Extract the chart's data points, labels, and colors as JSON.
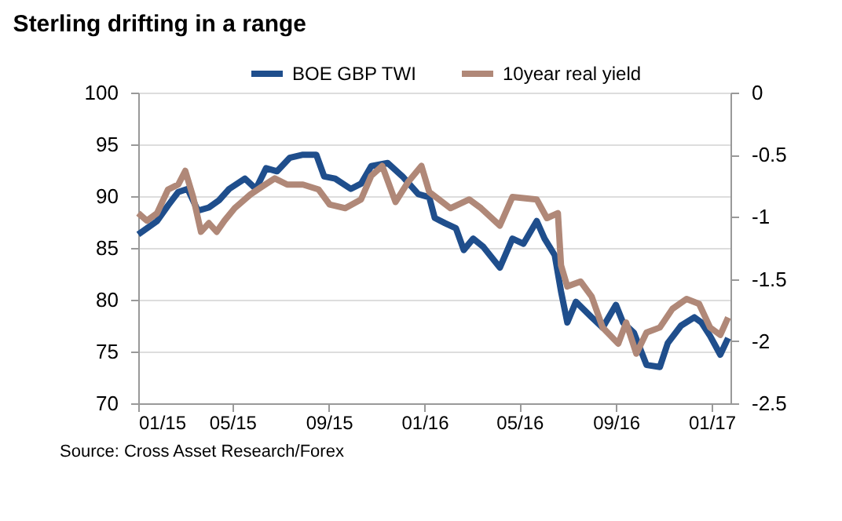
{
  "chart_data": {
    "type": "line",
    "title": "Sterling drifting in a range",
    "annotations": [
      "Source: Cross Asset Research/Forex"
    ],
    "legend": "top",
    "grid": "y",
    "marker": "none",
    "line_style": "solid",
    "xlim": [
      "2015-01-01",
      "2017-01-25"
    ],
    "xticks": [
      {
        "value": "2015-01-01",
        "label": "01/15"
      },
      {
        "value": "2015-05-01",
        "label": "05/15"
      },
      {
        "value": "2015-09-01",
        "label": "09/15"
      },
      {
        "value": "2016-01-01",
        "label": "01/16"
      },
      {
        "value": "2016-05-01",
        "label": "05/16"
      },
      {
        "value": "2016-09-01",
        "label": "09/16"
      },
      {
        "value": "2017-01-01",
        "label": "01/17"
      }
    ],
    "ylim": [
      70,
      100
    ],
    "yticks": [
      70,
      75,
      80,
      85,
      90,
      95,
      100
    ],
    "y2lim": [
      -2.5,
      0
    ],
    "y2ticks": [
      -2.5,
      -2,
      -1.5,
      -1,
      -0.5,
      0
    ],
    "series": [
      {
        "name": "BOE GBP TWI",
        "color": "#1f4e8c",
        "x": [
          "2015-01-01",
          "2015-01-12",
          "2015-01-25",
          "2015-02-08",
          "2015-02-21",
          "2015-03-05",
          "2015-03-18",
          "2015-04-01",
          "2015-04-14",
          "2015-04-27",
          "2015-05-17",
          "2015-05-31",
          "2015-06-13",
          "2015-06-27",
          "2015-07-13",
          "2015-07-30",
          "2015-08-16",
          "2015-08-26",
          "2015-09-09",
          "2015-09-29",
          "2015-10-12",
          "2015-10-25",
          "2015-11-15",
          "2015-12-04",
          "2015-12-24",
          "2016-01-07",
          "2016-01-14",
          "2016-01-27",
          "2016-02-10",
          "2016-02-20",
          "2016-03-03",
          "2016-03-16",
          "2016-04-06",
          "2016-04-22",
          "2016-05-06",
          "2016-05-23",
          "2016-06-02",
          "2016-06-15",
          "2016-06-23",
          "2016-07-01",
          "2016-07-12",
          "2016-08-01",
          "2016-08-15",
          "2016-09-01",
          "2016-09-10",
          "2016-09-24",
          "2016-10-10",
          "2016-10-27",
          "2016-11-06",
          "2016-11-23",
          "2016-12-10",
          "2016-12-19",
          "2016-12-30",
          "2017-01-12",
          "2017-01-22"
        ],
        "values": [
          86.3,
          86.9,
          87.6,
          89.1,
          90.4,
          90.7,
          88.6,
          88.9,
          89.6,
          90.7,
          91.7,
          90.7,
          92.7,
          92.4,
          93.7,
          94.0,
          94.0,
          91.9,
          91.7,
          90.7,
          91.2,
          92.9,
          93.2,
          91.9,
          90.2,
          89.9,
          87.9,
          87.4,
          86.9,
          84.8,
          85.9,
          85.1,
          83.1,
          85.9,
          85.4,
          87.6,
          85.9,
          84.3,
          80.8,
          77.8,
          79.8,
          78.3,
          77.3,
          79.5,
          77.8,
          76.8,
          73.7,
          73.5,
          75.8,
          77.5,
          78.3,
          77.8,
          76.5,
          74.7,
          76.3
        ]
      },
      {
        "name": "10year real yield",
        "color": "#b08878",
        "axis": "y2",
        "x": [
          "2015-01-01",
          "2015-01-12",
          "2015-01-25",
          "2015-02-08",
          "2015-02-21",
          "2015-03-02",
          "2015-03-12",
          "2015-03-22",
          "2015-04-01",
          "2015-04-11",
          "2015-04-21",
          "2015-05-04",
          "2015-05-24",
          "2015-06-07",
          "2015-06-24",
          "2015-07-10",
          "2015-07-30",
          "2015-08-19",
          "2015-09-02",
          "2015-09-22",
          "2015-10-12",
          "2015-10-25",
          "2015-11-08",
          "2015-11-25",
          "2015-12-11",
          "2015-12-28",
          "2016-01-07",
          "2016-02-03",
          "2016-02-27",
          "2016-03-13",
          "2016-04-06",
          "2016-04-22",
          "2016-05-23",
          "2016-06-05",
          "2016-06-19",
          "2016-06-23",
          "2016-07-01",
          "2016-07-18",
          "2016-08-01",
          "2016-08-15",
          "2016-09-04",
          "2016-09-14",
          "2016-09-27",
          "2016-10-10",
          "2016-10-27",
          "2016-11-12",
          "2016-11-30",
          "2016-12-16",
          "2016-12-30",
          "2017-01-12",
          "2017-01-22"
        ],
        "values": [
          -0.97,
          -1.03,
          -0.97,
          -0.78,
          -0.74,
          -0.63,
          -0.84,
          -1.12,
          -1.05,
          -1.12,
          -1.03,
          -0.93,
          -0.82,
          -0.76,
          -0.69,
          -0.74,
          -0.74,
          -0.78,
          -0.9,
          -0.93,
          -0.86,
          -0.67,
          -0.59,
          -0.88,
          -0.72,
          -0.59,
          -0.8,
          -0.93,
          -0.86,
          -0.93,
          -1.07,
          -0.84,
          -0.86,
          -1.01,
          -0.97,
          -1.39,
          -1.56,
          -1.52,
          -1.64,
          -1.89,
          -2.02,
          -1.85,
          -2.1,
          -1.93,
          -1.89,
          -1.74,
          -1.66,
          -1.7,
          -1.89,
          -1.95,
          -1.81
        ]
      }
    ]
  }
}
